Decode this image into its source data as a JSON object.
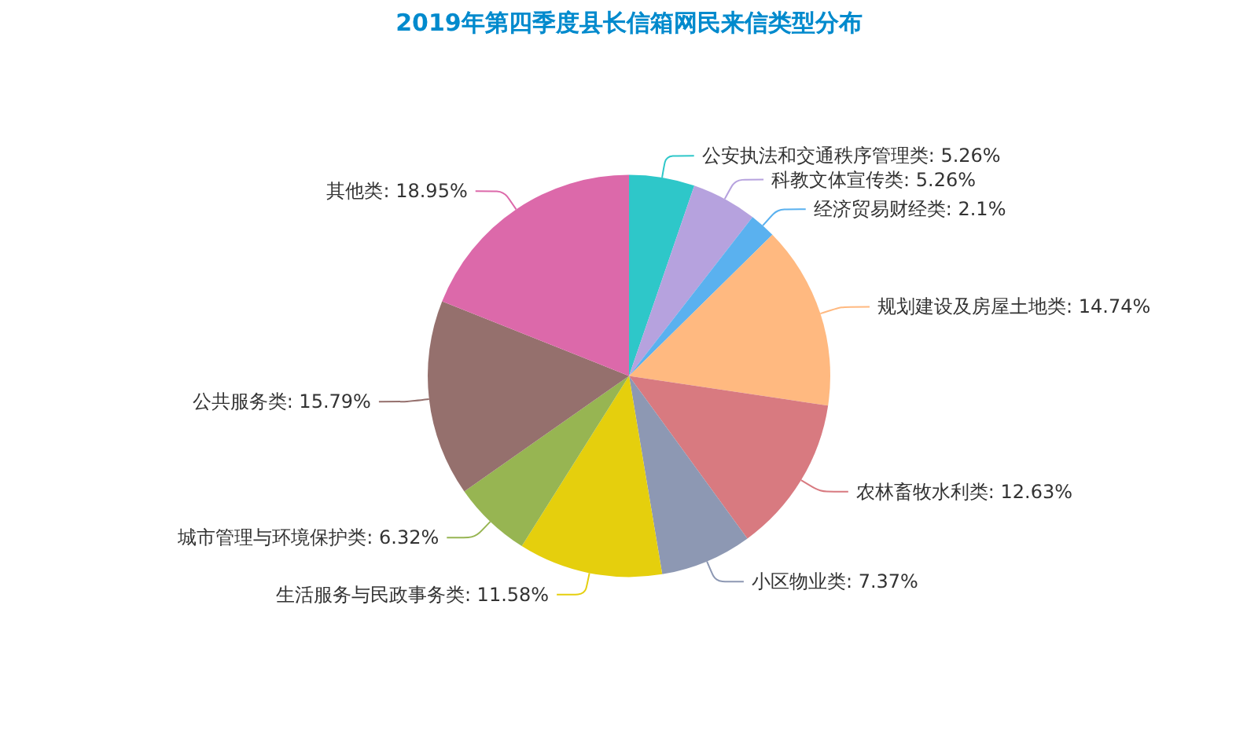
{
  "chart_data": {
    "type": "pie",
    "title": "2019年第四季度县长信箱网民来信类型分布",
    "categories": [
      "公安执法和交通秩序管理类",
      "科教文体宣传类",
      "经济贸易财经类",
      "规划建设及房屋土地类",
      "农林畜牧水利类",
      "小区物业类",
      "生活服务与民政事务类",
      "城市管理与环境保护类",
      "公共服务类",
      "其他类"
    ],
    "values": [
      5.26,
      5.26,
      2.1,
      14.74,
      12.63,
      7.37,
      11.58,
      6.32,
      15.79,
      18.95
    ],
    "value_labels": [
      "5.26%",
      "5.26%",
      "2.1%",
      "14.74%",
      "12.63%",
      "7.37%",
      "11.58%",
      "6.32%",
      "15.79%",
      "18.95%"
    ],
    "colors": [
      "#2ec7c9",
      "#b6a2de",
      "#5ab1ef",
      "#ffb980",
      "#d87a80",
      "#8d98b3",
      "#e5cf0d",
      "#97b552",
      "#95706d",
      "#dc69aa"
    ],
    "legend": false
  }
}
